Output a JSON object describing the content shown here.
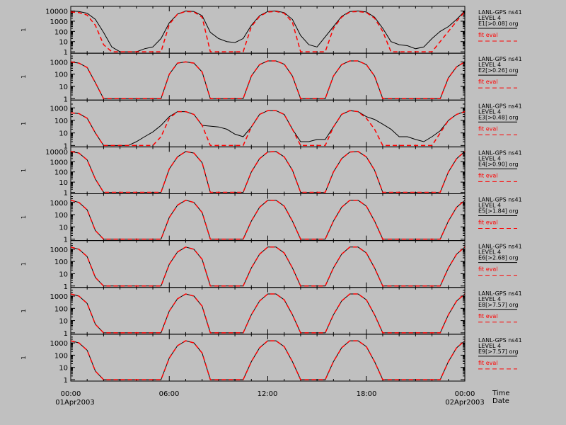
{
  "colors": {
    "background": "#c0c0c0",
    "axes": "#000000",
    "observed": "#000000",
    "fit": "#ff0000"
  },
  "x_axis": {
    "tick_labels": [
      "00:00",
      "06:00",
      "12:00",
      "18:00",
      "00:00"
    ],
    "start_date": "01Apr2003",
    "end_date": "02Apr2003",
    "time_label": "Time",
    "date_label": "Date"
  },
  "panels": [
    {
      "ylabel": "1",
      "yticks": [
        "10000",
        "1000",
        "100",
        "10",
        "1"
      ],
      "ylim": [
        1,
        15000
      ],
      "legend": {
        "line1": "LANL-GPS ns41",
        "line2": "LEVEL 4",
        "line3": "E1[>0.08] org",
        "fit": "fit eval"
      }
    },
    {
      "ylabel": "1",
      "yticks": [
        "1000",
        "100",
        "10",
        "1"
      ],
      "ylim": [
        1,
        3000
      ],
      "legend": {
        "line1": "LANL-GPS ns41",
        "line2": "LEVEL 4",
        "line3": "E2[>0.26] org",
        "fit": "fit eval"
      }
    },
    {
      "ylabel": "1",
      "yticks": [
        "1000",
        "100",
        "10",
        "1"
      ],
      "ylim": [
        1,
        2500
      ],
      "legend": {
        "line1": "LANL-GPS ns41",
        "line2": "LEVEL 4",
        "line3": "E3[>0.48] org",
        "fit": "fit eval"
      }
    },
    {
      "ylabel": "1",
      "yticks": [
        "10000",
        "1000",
        "100",
        "10",
        "1"
      ],
      "ylim": [
        1,
        15000
      ],
      "legend": {
        "line1": "LANL-GPS ns41",
        "line2": "LEVEL 4",
        "line3": "E4[>0.90] org",
        "fit": "fit eval"
      }
    },
    {
      "ylabel": "1",
      "yticks": [
        "1000",
        "100",
        "10",
        "1"
      ],
      "ylim": [
        1,
        3000
      ],
      "legend": {
        "line1": "LANL-GPS ns41",
        "line2": "LEVEL 4",
        "line3": "E5[>1.84] org",
        "fit": "fit eval"
      }
    },
    {
      "ylabel": "1",
      "yticks": [
        "1000",
        "100",
        "10",
        "1"
      ],
      "ylim": [
        1,
        3000
      ],
      "legend": {
        "line1": "LANL-GPS ns41",
        "line2": "LEVEL 4",
        "line3": "E6[>2.68] org",
        "fit": "fit eval"
      }
    },
    {
      "ylabel": "1",
      "yticks": [
        "1000",
        "100",
        "10",
        "1"
      ],
      "ylim": [
        1,
        3000
      ],
      "legend": {
        "line1": "LANL-GPS ns41",
        "line2": "LEVEL 4",
        "line3": "E8[>7.57] org",
        "fit": "fit eval"
      }
    },
    {
      "ylabel": "1",
      "yticks": [
        "1000",
        "100",
        "10",
        "1"
      ],
      "ylim": [
        1,
        3000
      ],
      "legend": {
        "line1": "LANL-GPS ns41",
        "line2": "LEVEL 4",
        "line3": "E9[>7.57] org",
        "fit": "fit eval"
      }
    }
  ],
  "chart_data": {
    "type": "line",
    "y_scale": "log",
    "x_unit": "hours since 00:00 01Apr2003",
    "xlim": [
      0,
      24
    ],
    "x": [
      0,
      0.5,
      1,
      1.5,
      2,
      2.5,
      3,
      3.5,
      4,
      4.5,
      5,
      5.5,
      6,
      6.5,
      7,
      7.5,
      8,
      8.5,
      9,
      9.5,
      10,
      10.5,
      11,
      11.5,
      12,
      12.5,
      13,
      13.5,
      14,
      14.5,
      15,
      15.5,
      16,
      16.5,
      17,
      17.5,
      18,
      18.5,
      19,
      19.5,
      20,
      20.5,
      21,
      21.5,
      22,
      22.5,
      23,
      23.5,
      24
    ],
    "panels": [
      {
        "series": [
          {
            "name": "E1[>0.08] org",
            "values": [
              10000,
              9000,
              6000,
              1500,
              80,
              3,
              1,
              1,
              1,
              2,
              3,
              20,
              700,
              5000,
              10000,
              9000,
              3500,
              80,
              20,
              10,
              8,
              20,
              400,
              3500,
              9000,
              10000,
              7000,
              1500,
              40,
              5,
              3,
              30,
              300,
              3000,
              9000,
              10000,
              8000,
              2500,
              200,
              10,
              5,
              4,
              2,
              3,
              20,
              100,
              300,
              1500,
              10000
            ]
          },
          {
            "name": "fit eval",
            "values": [
              8000,
              7000,
              4000,
              400,
              5,
              1,
              1,
              1,
              1,
              1,
              1,
              1,
              500,
              5000,
              9000,
              8000,
              2500,
              1,
              1,
              1,
              1,
              1,
              300,
              3000,
              8000,
              9000,
              6000,
              800,
              1,
              1,
              1,
              1,
              200,
              2500,
              8000,
              9000,
              7000,
              2000,
              100,
              1,
              1,
              1,
              1,
              1,
              1,
              10,
              100,
              1000,
              9000
            ]
          }
        ]
      },
      {
        "series": [
          {
            "name": "E2[>0.26] org",
            "values": [
              1000,
              800,
              350,
              20,
              1,
              1,
              1,
              1,
              1,
              1,
              1,
              1,
              100,
              800,
              1000,
              800,
              150,
              1,
              1,
              1,
              1,
              1,
              70,
              600,
              1200,
              1200,
              650,
              70,
              1,
              1,
              1,
              1,
              70,
              600,
              1200,
              1200,
              600,
              70,
              1,
              1,
              1,
              1,
              1,
              1,
              1,
              1,
              50,
              400,
              1000
            ]
          },
          {
            "name": "fit eval",
            "values": [
              1000,
              800,
              350,
              20,
              1,
              1,
              1,
              1,
              1,
              1,
              1,
              1,
              100,
              800,
              1000,
              800,
              150,
              1,
              1,
              1,
              1,
              1,
              70,
              600,
              1200,
              1200,
              650,
              70,
              1,
              1,
              1,
              1,
              70,
              600,
              1200,
              1200,
              600,
              70,
              1,
              1,
              1,
              1,
              1,
              1,
              1,
              1,
              50,
              400,
              1000
            ]
          }
        ]
      },
      {
        "series": [
          {
            "name": "E3[>0.48] org",
            "values": [
              400,
              350,
              150,
              10,
              1,
              1,
              1,
              1,
              2,
              5,
              12,
              40,
              200,
              500,
              500,
              300,
              40,
              35,
              30,
              20,
              8,
              5,
              30,
              300,
              600,
              600,
              300,
              20,
              2,
              2,
              3,
              3,
              30,
              300,
              600,
              500,
              200,
              120,
              50,
              20,
              5,
              5,
              3,
              2,
              5,
              15,
              100,
              300,
              500
            ]
          },
          {
            "name": "fit eval",
            "values": [
              400,
              350,
              150,
              10,
              1,
              1,
              1,
              1,
              1,
              1,
              1,
              5,
              150,
              500,
              500,
              300,
              40,
              1,
              1,
              1,
              1,
              1,
              30,
              300,
              600,
              600,
              300,
              20,
              1,
              1,
              1,
              1,
              30,
              300,
              600,
              500,
              150,
              20,
              1,
              1,
              1,
              1,
              1,
              1,
              1,
              10,
              100,
              300,
              500
            ]
          }
        ]
      },
      {
        "series": [
          {
            "name": "E4[>0.90] org",
            "values": [
              10000,
              7000,
              1500,
              20,
              1,
              1,
              1,
              1,
              1,
              1,
              1,
              1,
              200,
              3000,
              10000,
              7000,
              800,
              1,
              1,
              1,
              1,
              1,
              100,
              2000,
              9000,
              10000,
              3000,
              150,
              1,
              1,
              1,
              1,
              100,
              2000,
              9000,
              10000,
              3000,
              150,
              1,
              1,
              1,
              1,
              1,
              1,
              1,
              1,
              100,
              2000,
              10000
            ]
          },
          {
            "name": "fit eval",
            "values": [
              10000,
              7000,
              1500,
              20,
              1,
              1,
              1,
              1,
              1,
              1,
              1,
              1,
              200,
              3000,
              10000,
              7000,
              800,
              1,
              1,
              1,
              1,
              1,
              100,
              2000,
              9000,
              10000,
              3000,
              150,
              1,
              1,
              1,
              1,
              100,
              2000,
              9000,
              10000,
              3000,
              150,
              1,
              1,
              1,
              1,
              1,
              1,
              1,
              1,
              100,
              2000,
              10000
            ]
          }
        ]
      },
      {
        "series": [
          {
            "name": "E5[>1.84] org",
            "values": [
              1500,
              1000,
              250,
              5,
              1,
              1,
              1,
              1,
              1,
              1,
              1,
              1,
              60,
              600,
              1500,
              1000,
              150,
              1,
              1,
              1,
              1,
              1,
              30,
              400,
              1500,
              1500,
              500,
              30,
              1,
              1,
              1,
              1,
              30,
              400,
              1500,
              1500,
              500,
              30,
              1,
              1,
              1,
              1,
              1,
              1,
              1,
              1,
              30,
              400,
              1500
            ]
          },
          {
            "name": "fit eval",
            "values": [
              1500,
              1000,
              250,
              5,
              1,
              1,
              1,
              1,
              1,
              1,
              1,
              1,
              60,
              600,
              1500,
              1000,
              150,
              1,
              1,
              1,
              1,
              1,
              30,
              400,
              1500,
              1500,
              500,
              30,
              1,
              1,
              1,
              1,
              30,
              400,
              1500,
              1500,
              500,
              30,
              1,
              1,
              1,
              1,
              1,
              1,
              1,
              1,
              30,
              400,
              1500
            ]
          }
        ]
      },
      {
        "series": [
          {
            "name": "E6[>2.68] org",
            "values": [
              1500,
              1000,
              250,
              5,
              1,
              1,
              1,
              1,
              1,
              1,
              1,
              1,
              60,
              600,
              1500,
              1000,
              150,
              1,
              1,
              1,
              1,
              1,
              30,
              400,
              1500,
              1500,
              500,
              30,
              1,
              1,
              1,
              1,
              30,
              400,
              1500,
              1500,
              500,
              30,
              1,
              1,
              1,
              1,
              1,
              1,
              1,
              1,
              30,
              400,
              1500
            ]
          },
          {
            "name": "fit eval",
            "values": [
              1500,
              1000,
              250,
              5,
              1,
              1,
              1,
              1,
              1,
              1,
              1,
              1,
              60,
              600,
              1500,
              1000,
              150,
              1,
              1,
              1,
              1,
              1,
              30,
              400,
              1500,
              1500,
              500,
              30,
              1,
              1,
              1,
              1,
              30,
              400,
              1500,
              1500,
              500,
              30,
              1,
              1,
              1,
              1,
              1,
              1,
              1,
              1,
              30,
              400,
              1500
            ]
          }
        ]
      },
      {
        "series": [
          {
            "name": "E8[>7.57] org",
            "values": [
              1500,
              1000,
              250,
              5,
              1,
              1,
              1,
              1,
              1,
              1,
              1,
              1,
              60,
              600,
              1500,
              1000,
              150,
              1,
              1,
              1,
              1,
              1,
              30,
              400,
              1500,
              1500,
              500,
              30,
              1,
              1,
              1,
              1,
              30,
              400,
              1500,
              1500,
              500,
              30,
              1,
              1,
              1,
              1,
              1,
              1,
              1,
              1,
              30,
              400,
              1500
            ]
          },
          {
            "name": "fit eval",
            "values": [
              1500,
              1000,
              250,
              5,
              1,
              1,
              1,
              1,
              1,
              1,
              1,
              1,
              60,
              600,
              1500,
              1000,
              150,
              1,
              1,
              1,
              1,
              1,
              30,
              400,
              1500,
              1500,
              500,
              30,
              1,
              1,
              1,
              1,
              30,
              400,
              1500,
              1500,
              500,
              30,
              1,
              1,
              1,
              1,
              1,
              1,
              1,
              1,
              30,
              400,
              1500
            ]
          }
        ]
      },
      {
        "series": [
          {
            "name": "E9[>7.57] org",
            "values": [
              1500,
              1000,
              250,
              5,
              1,
              1,
              1,
              1,
              1,
              1,
              1,
              1,
              60,
              600,
              1500,
              1000,
              150,
              1,
              1,
              1,
              1,
              1,
              30,
              400,
              1500,
              1500,
              500,
              30,
              1,
              1,
              1,
              1,
              30,
              400,
              1500,
              1500,
              500,
              30,
              1,
              1,
              1,
              1,
              1,
              1,
              1,
              1,
              30,
              400,
              1500
            ]
          },
          {
            "name": "fit eval",
            "values": [
              1500,
              1000,
              250,
              5,
              1,
              1,
              1,
              1,
              1,
              1,
              1,
              1,
              60,
              600,
              1500,
              1000,
              150,
              1,
              1,
              1,
              1,
              1,
              30,
              400,
              1500,
              1500,
              500,
              30,
              1,
              1,
              1,
              1,
              30,
              400,
              1500,
              1500,
              500,
              30,
              1,
              1,
              1,
              1,
              1,
              1,
              1,
              1,
              30,
              400,
              1500
            ]
          }
        ]
      }
    ]
  }
}
